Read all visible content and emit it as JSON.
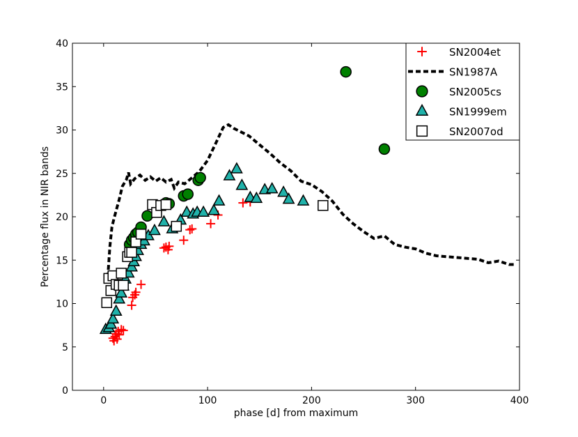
{
  "chart_data": {
    "type": "scatter",
    "title": "",
    "xlabel": "phase [d] from maximum",
    "ylabel": "Percentage flux in NIR bands",
    "xlim": [
      -30,
      400
    ],
    "ylim": [
      0,
      40
    ],
    "xticks": [
      0,
      100,
      200,
      300,
      400
    ],
    "yticks": [
      0,
      5,
      10,
      15,
      20,
      25,
      30,
      35,
      40
    ],
    "grid": false,
    "legend_position": "top-right",
    "series": [
      {
        "name": "SN2004et",
        "marker": "plus",
        "color": "#ff0000",
        "x": [
          9,
          10,
          11,
          12,
          13,
          14,
          15,
          17,
          19,
          27,
          28,
          30,
          31,
          36,
          58,
          60,
          62,
          63,
          77,
          83,
          85,
          103,
          110,
          134,
          141
        ],
        "y": [
          6.0,
          5.7,
          6.2,
          6.5,
          5.9,
          6.8,
          6.4,
          7.0,
          6.9,
          9.8,
          10.7,
          11.0,
          11.3,
          12.2,
          16.4,
          16.5,
          16.2,
          16.6,
          17.3,
          18.5,
          18.6,
          19.2,
          20.2,
          21.6,
          21.7
        ]
      },
      {
        "name": "SN1987A",
        "marker": "dash",
        "color": "#000000",
        "x": [
          4,
          6,
          8,
          10,
          15,
          18,
          22,
          24,
          26,
          30,
          35,
          40,
          45,
          50,
          55,
          60,
          65,
          68,
          72,
          78,
          85,
          92,
          100,
          108,
          115,
          120,
          125,
          130,
          140,
          150,
          160,
          170,
          180,
          190,
          200,
          210,
          220,
          230,
          240,
          250,
          260,
          270,
          280,
          290,
          300,
          310,
          320,
          330,
          340,
          350,
          360,
          370,
          380,
          390,
          397
        ],
        "y": [
          13.0,
          16.5,
          18.8,
          19.8,
          22.0,
          23.5,
          24.3,
          25.1,
          23.8,
          24.4,
          24.8,
          24.2,
          24.6,
          24.1,
          24.5,
          24.0,
          24.3,
          23.3,
          24.0,
          23.8,
          24.5,
          25.2,
          26.5,
          28.5,
          30.3,
          30.6,
          30.2,
          29.9,
          29.3,
          28.3,
          27.3,
          26.2,
          25.3,
          24.1,
          23.7,
          22.9,
          21.8,
          20.3,
          19.2,
          18.3,
          17.5,
          17.8,
          16.8,
          16.5,
          16.3,
          15.8,
          15.5,
          15.4,
          15.3,
          15.2,
          15.1,
          14.7,
          14.9,
          14.5,
          14.5
        ]
      },
      {
        "name": "SN2005cs",
        "marker": "circle",
        "color": "#008000",
        "x": [
          25,
          27,
          29,
          31,
          33,
          36,
          42,
          60,
          63,
          77,
          81,
          91,
          93,
          233,
          270
        ],
        "y": [
          16.8,
          17.3,
          17.6,
          18.0,
          18.2,
          18.8,
          20.1,
          21.6,
          21.5,
          22.4,
          22.6,
          24.2,
          24.5,
          36.7,
          27.8
        ]
      },
      {
        "name": "SN1999em",
        "marker": "triangle",
        "color": "#20b2aa",
        "x": [
          2,
          5,
          7,
          9,
          12,
          15,
          17,
          19,
          21,
          24,
          27,
          29,
          31,
          33,
          36,
          39,
          43,
          49,
          58,
          66,
          74,
          80,
          86,
          90,
          96,
          106,
          111,
          121,
          128,
          133,
          141,
          147,
          155,
          162,
          173,
          178,
          192
        ],
        "y": [
          7.0,
          7.2,
          7.6,
          8.2,
          9.1,
          10.5,
          11.2,
          12.0,
          12.8,
          13.5,
          14.2,
          14.8,
          15.4,
          16.1,
          16.8,
          17.2,
          17.8,
          18.4,
          19.4,
          18.6,
          19.6,
          20.5,
          20.3,
          20.5,
          20.5,
          20.7,
          21.8,
          24.7,
          25.5,
          23.6,
          22.2,
          22.1,
          23.1,
          23.2,
          22.8,
          22.0,
          21.8
        ]
      },
      {
        "name": "SN2007od",
        "marker": "square",
        "color": "#ffffff",
        "x": [
          3,
          5,
          7,
          9,
          12,
          15,
          17,
          19,
          23,
          25,
          27,
          31,
          36,
          47,
          51,
          55,
          60,
          70,
          211
        ],
        "y": [
          10.1,
          12.9,
          11.5,
          13.2,
          12.2,
          12.1,
          13.5,
          12.1,
          15.4,
          15.9,
          15.9,
          17.1,
          18.0,
          21.4,
          20.5,
          21.3,
          21.4,
          18.9,
          21.3
        ]
      }
    ]
  }
}
